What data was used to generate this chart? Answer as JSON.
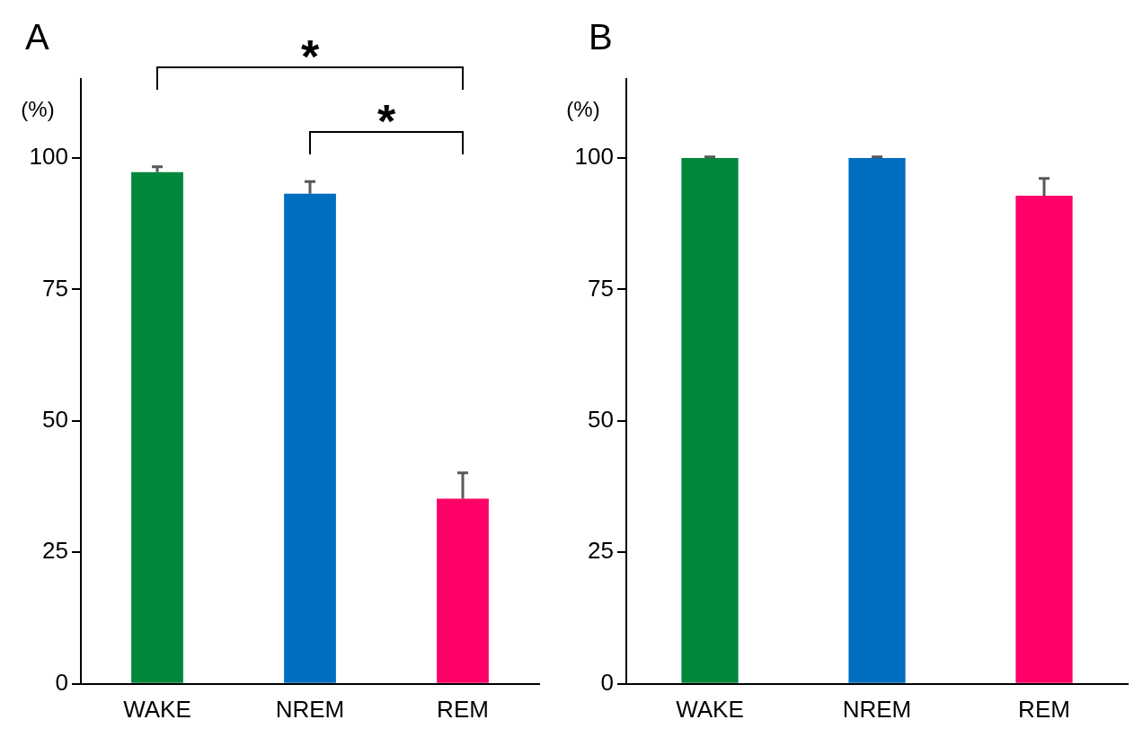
{
  "chart_data": [
    {
      "type": "bar",
      "title": "A",
      "ylabel": "(%)",
      "categories": [
        "WAKE",
        "NREM",
        "REM"
      ],
      "values": [
        97.3,
        93.2,
        35.2
      ],
      "colors": [
        "#00873c",
        "#006ec0",
        "#ff0066"
      ],
      "errors": [
        [
          97.3,
          98.3
        ],
        [
          93.2,
          95.5
        ],
        [
          35.2,
          40.1
        ]
      ],
      "ylim": [
        0,
        115
      ],
      "yticks": [
        0,
        25,
        50,
        75,
        100
      ],
      "annotations": [
        "*",
        "*"
      ],
      "grid": false,
      "legend": false
    },
    {
      "type": "bar",
      "title": "B",
      "ylabel": "(%)",
      "categories": [
        "WAKE",
        "NREM",
        "REM"
      ],
      "values": [
        100,
        100,
        92.8
      ],
      "colors": [
        "#00873c",
        "#006ec0",
        "#ff0066"
      ],
      "errors": [
        [
          100,
          100.2
        ],
        [
          100,
          100.2
        ],
        [
          92.8,
          96.1
        ]
      ],
      "ylim": [
        0,
        115
      ],
      "yticks": [
        0,
        25,
        50,
        75,
        100
      ],
      "grid": false,
      "legend": false
    }
  ]
}
